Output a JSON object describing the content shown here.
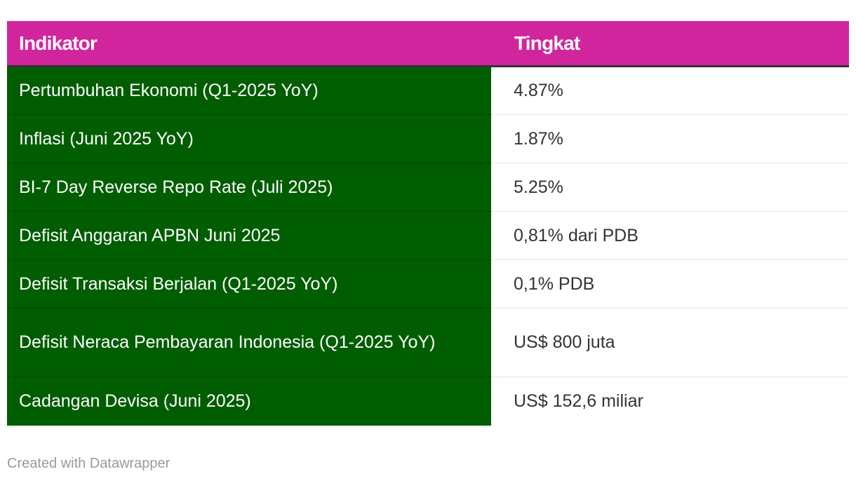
{
  "chart_data": {
    "type": "table",
    "columns": [
      "Indikator",
      "Tingkat"
    ],
    "rows": [
      {
        "indikator": "Pertumbuhan Ekonomi (Q1-2025 YoY)",
        "tingkat": "4.87%"
      },
      {
        "indikator": "Inflasi (Juni 2025 YoY)",
        "tingkat": "1.87%"
      },
      {
        "indikator": "BI-7 Day Reverse Repo Rate (Juli 2025)",
        "tingkat": "5.25%"
      },
      {
        "indikator": "Defisit Anggaran APBN Juni 2025",
        "tingkat": "0,81% dari PDB"
      },
      {
        "indikator": "Defisit Transaksi Berjalan (Q1-2025 YoY)",
        "tingkat": "0,1% PDB"
      },
      {
        "indikator": "Defisit Neraca Pembayaran Indonesia (Q1-2025 YoY)",
        "tingkat": "US$ 800 juta"
      },
      {
        "indikator": "Cadangan Devisa (Juni 2025)",
        "tingkat": "US$ 152,6 miliar"
      }
    ]
  },
  "colors": {
    "header_bg": "#d1259e",
    "indicator_bg": "#005d00",
    "header_text": "#ffffff"
  },
  "footer": {
    "credit": "Created with Datawrapper"
  }
}
